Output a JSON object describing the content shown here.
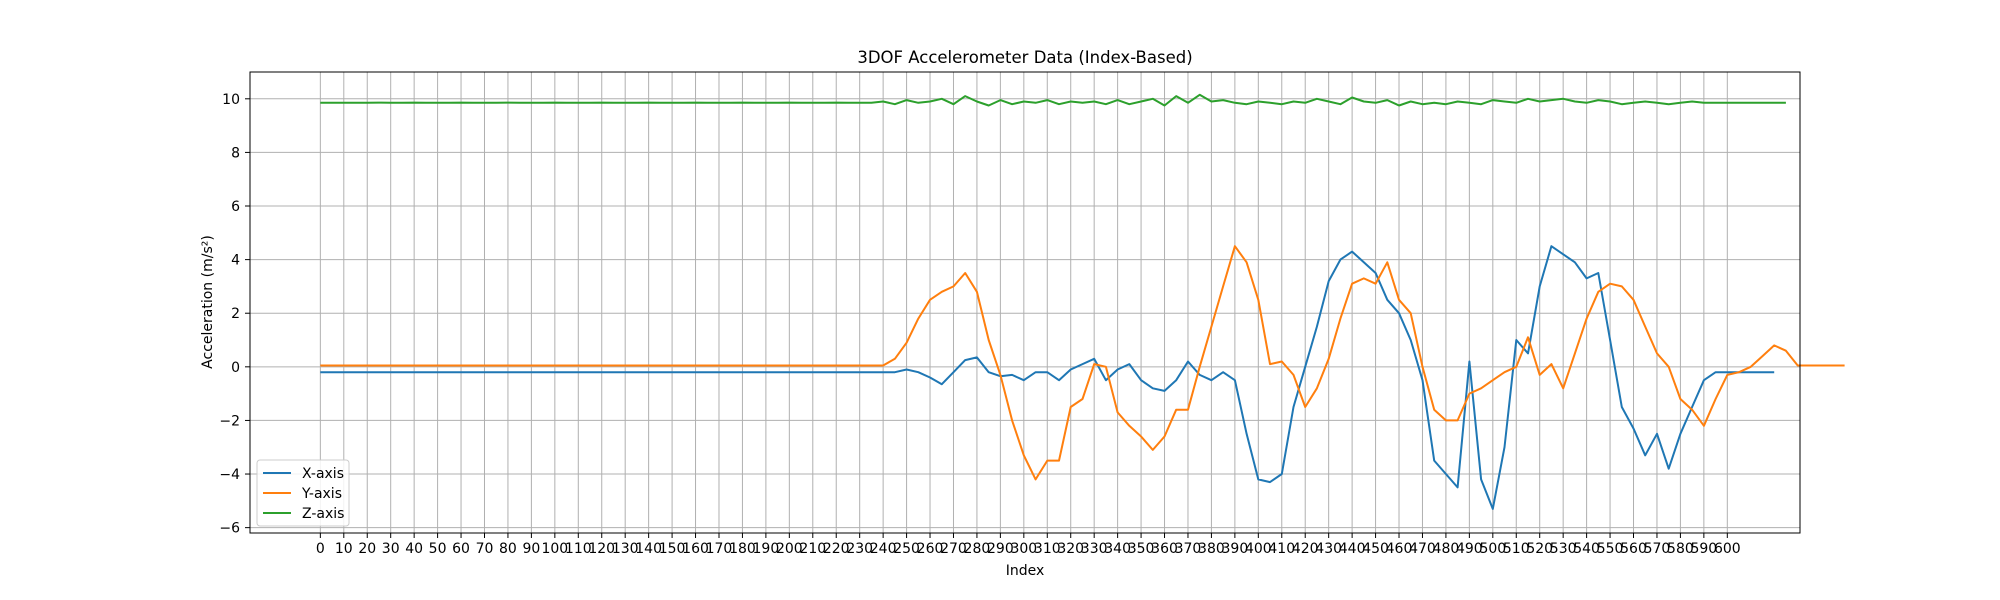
{
  "chart_data": {
    "type": "line",
    "title": "3DOF Accelerometer Data (Index-Based)",
    "xlabel": "Index",
    "ylabel": "Acceleration (m/s²)",
    "xlim": [
      -30,
      631
    ],
    "ylim": [
      -6.2,
      11
    ],
    "x_ticks": [
      0,
      10,
      20,
      30,
      40,
      50,
      60,
      70,
      80,
      90,
      100,
      110,
      120,
      130,
      140,
      150,
      160,
      170,
      180,
      190,
      200,
      210,
      220,
      230,
      240,
      250,
      260,
      270,
      280,
      290,
      300,
      310,
      320,
      330,
      340,
      350,
      360,
      370,
      380,
      390,
      400,
      410,
      420,
      430,
      440,
      450,
      460,
      470,
      480,
      490,
      500,
      510,
      520,
      530,
      540,
      550,
      560,
      570,
      580,
      590,
      600
    ],
    "y_ticks": [
      -6,
      -4,
      -2,
      0,
      2,
      4,
      6,
      8,
      10
    ],
    "grid": true,
    "legend_position": "lower-left",
    "x_step": 5,
    "series": [
      {
        "name": "X-axis",
        "color": "#1f77b4",
        "values": [
          -0.2,
          -0.2,
          -0.2,
          -0.2,
          -0.2,
          -0.2,
          -0.2,
          -0.2,
          -0.2,
          -0.2,
          -0.2,
          -0.2,
          -0.2,
          -0.2,
          -0.2,
          -0.2,
          -0.2,
          -0.2,
          -0.2,
          -0.2,
          -0.2,
          -0.2,
          -0.2,
          -0.2,
          -0.2,
          -0.2,
          -0.2,
          -0.2,
          -0.2,
          -0.2,
          -0.2,
          -0.2,
          -0.2,
          -0.2,
          -0.2,
          -0.2,
          -0.2,
          -0.2,
          -0.2,
          -0.2,
          -0.2,
          -0.2,
          -0.2,
          -0.2,
          -0.2,
          -0.2,
          -0.2,
          -0.2,
          -0.2,
          -0.2,
          -0.1,
          -0.2,
          -0.4,
          -0.65,
          -0.2,
          0.25,
          0.35,
          -0.2,
          -0.35,
          -0.3,
          -0.5,
          -0.2,
          -0.2,
          -0.5,
          -0.1,
          0.1,
          0.3,
          -0.5,
          -0.1,
          0.1,
          -0.5,
          -0.8,
          -0.9,
          -0.5,
          0.2,
          -0.3,
          -0.5,
          -0.2,
          -0.5,
          -2.5,
          -4.2,
          -4.3,
          -4.0,
          -1.5,
          0.0,
          1.5,
          3.2,
          4.0,
          4.3,
          3.9,
          3.5,
          2.5,
          2.0,
          1.0,
          -0.5,
          -3.5,
          -4.0,
          -4.5,
          0.2,
          -4.2,
          -5.3,
          -3.0,
          1.0,
          0.5,
          3.0,
          4.5,
          4.2,
          3.9,
          3.3,
          3.5,
          1.0,
          -1.5,
          -2.3,
          -3.3,
          -2.5,
          -3.8,
          -2.5,
          -1.5,
          -0.5,
          -0.2,
          -0.2,
          -0.2,
          -0.2,
          -0.2,
          -0.2
        ]
      },
      {
        "name": "Y-axis",
        "color": "#ff7f0e",
        "values": [
          0.05,
          0.05,
          0.05,
          0.05,
          0.05,
          0.05,
          0.05,
          0.05,
          0.05,
          0.05,
          0.05,
          0.05,
          0.05,
          0.05,
          0.05,
          0.05,
          0.05,
          0.05,
          0.05,
          0.05,
          0.05,
          0.05,
          0.05,
          0.05,
          0.05,
          0.05,
          0.05,
          0.05,
          0.05,
          0.05,
          0.05,
          0.05,
          0.05,
          0.05,
          0.05,
          0.05,
          0.05,
          0.05,
          0.05,
          0.05,
          0.05,
          0.05,
          0.05,
          0.05,
          0.05,
          0.05,
          0.05,
          0.05,
          0.05,
          0.3,
          0.9,
          1.8,
          2.5,
          2.8,
          3.0,
          3.5,
          2.8,
          1.0,
          -0.3,
          -2.0,
          -3.3,
          -4.2,
          -3.5,
          -3.5,
          -1.5,
          -1.2,
          0.1,
          0.0,
          -1.7,
          -2.2,
          -2.6,
          -3.1,
          -2.6,
          -1.6,
          -1.6,
          0.0,
          1.5,
          3.0,
          4.5,
          3.9,
          2.5,
          0.1,
          0.2,
          -0.3,
          -1.5,
          -0.8,
          0.3,
          1.8,
          3.1,
          3.3,
          3.1,
          3.9,
          2.5,
          2.0,
          0.0,
          -1.6,
          -2.0,
          -2.0,
          -1.0,
          -0.8,
          -0.5,
          -0.2,
          0.0,
          1.1,
          -0.3,
          0.1,
          -0.8,
          0.5,
          1.8,
          2.8,
          3.1,
          3.0,
          2.5,
          1.5,
          0.5,
          0.0,
          -1.2,
          -1.6,
          -2.2,
          -1.2,
          -0.3,
          -0.2,
          0.0,
          0.4,
          0.8,
          0.6,
          0.05,
          0.05,
          0.05,
          0.05,
          0.05
        ]
      },
      {
        "name": "Z-axis",
        "color": "#2ca02c",
        "values": [
          9.85,
          9.85,
          9.85,
          9.85,
          9.85,
          9.86,
          9.85,
          9.85,
          9.86,
          9.85,
          9.85,
          9.85,
          9.86,
          9.85,
          9.85,
          9.85,
          9.86,
          9.85,
          9.85,
          9.85,
          9.86,
          9.85,
          9.85,
          9.85,
          9.86,
          9.85,
          9.85,
          9.85,
          9.86,
          9.85,
          9.85,
          9.85,
          9.86,
          9.85,
          9.85,
          9.85,
          9.86,
          9.85,
          9.85,
          9.85,
          9.86,
          9.85,
          9.85,
          9.85,
          9.86,
          9.85,
          9.85,
          9.85,
          9.9,
          9.8,
          9.95,
          9.85,
          9.9,
          10.0,
          9.8,
          10.1,
          9.9,
          9.75,
          9.95,
          9.8,
          9.9,
          9.85,
          9.95,
          9.8,
          9.9,
          9.85,
          9.9,
          9.8,
          9.95,
          9.8,
          9.9,
          10.0,
          9.75,
          10.1,
          9.85,
          10.15,
          9.9,
          9.95,
          9.85,
          9.8,
          9.9,
          9.85,
          9.8,
          9.9,
          9.85,
          10.0,
          9.9,
          9.8,
          10.05,
          9.9,
          9.85,
          9.95,
          9.75,
          9.9,
          9.8,
          9.85,
          9.8,
          9.9,
          9.85,
          9.8,
          9.95,
          9.9,
          9.85,
          10.0,
          9.9,
          9.95,
          10.0,
          9.9,
          9.85,
          9.95,
          9.9,
          9.8,
          9.85,
          9.9,
          9.85,
          9.8,
          9.85,
          9.9,
          9.85,
          9.85,
          9.85,
          9.85,
          9.85,
          9.85,
          9.85,
          9.85
        ]
      }
    ]
  }
}
